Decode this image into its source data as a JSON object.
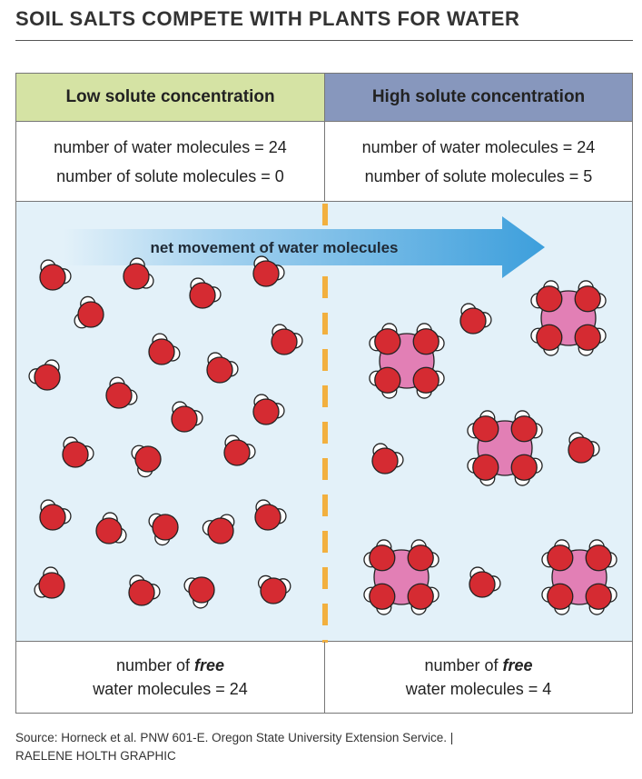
{
  "title": "SOIL SALTS COMPETE WITH PLANTS FOR WATER",
  "left": {
    "header": "Low solute concentration",
    "water_count": "number of water molecules = 24",
    "solute_count": "number of solute molecules = 0",
    "free_line1_prefix": "number of ",
    "free_word": "free",
    "free_line2": "water molecules = 24"
  },
  "right": {
    "header": "High solute concentration",
    "water_count": "number of water molecules = 24",
    "solute_count": "number of solute molecules = 5",
    "free_line1_prefix": "number of ",
    "free_word": "free",
    "free_line2": "water molecules = 4"
  },
  "arrow_label": "net movement of water molecules",
  "source_line1": "Source: Horneck et al. PNW 601-E. Oregon State University Extension Service.  |",
  "source_line2": "RAELENE HOLTH GRAPHIC",
  "colors": {
    "low_header": "#d5e3a4",
    "high_header": "#8797bd",
    "panel": "#e3f1f9",
    "oxygen": "#d52b32",
    "solute": "#e27fb5",
    "arrow": "#4aa6df",
    "divider": "#f2b03f"
  }
}
